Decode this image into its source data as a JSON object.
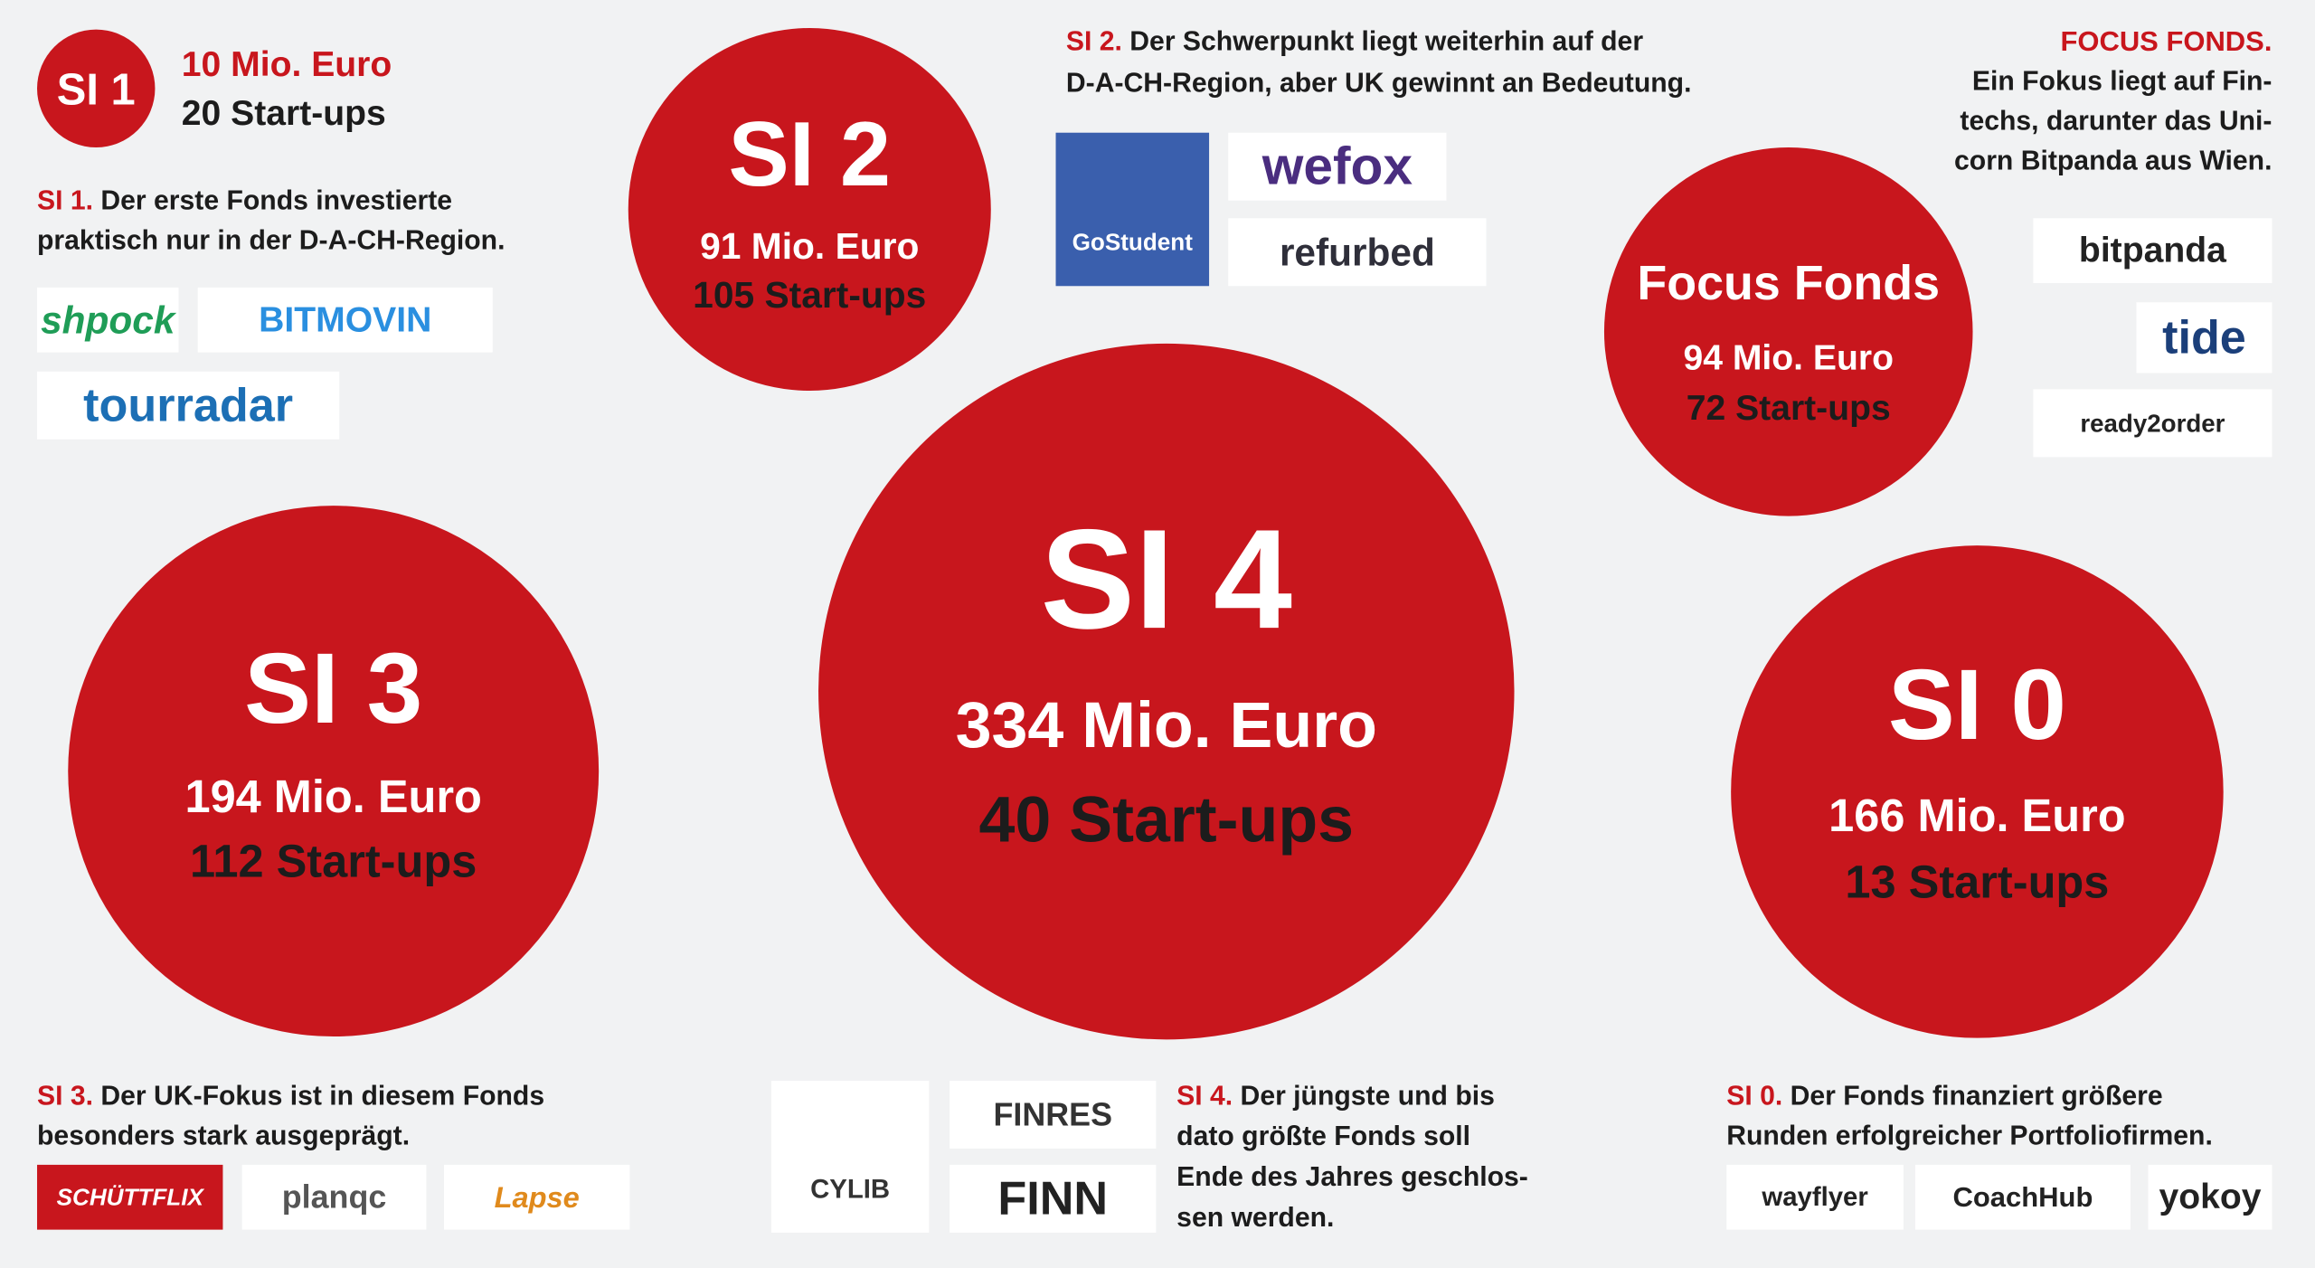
{
  "funds": [
    {
      "badge": "SI 1",
      "amount": "10 Mio. Euro",
      "startups": "20 Start-ups",
      "lead": "SI 1.",
      "text": [
        "Der erste Fonds investierte",
        "praktisch nur in der D-A-CH-Region."
      ],
      "logos": [
        "shpock",
        "BITMOVIN",
        "tourradar"
      ]
    },
    {
      "badge": "SI 2",
      "amount": "91 Mio. Euro",
      "startups": "105 Start-ups",
      "lead": "SI 2.",
      "text": [
        "Der Schwerpunkt liegt weiterhin auf der",
        "D-A-CH-Region, aber UK gewinnt an Bedeutung."
      ],
      "logos": [
        "GoStudent",
        "wefox",
        "refurbed"
      ]
    },
    {
      "badge": "Focus Fonds",
      "amount": "94 Mio. Euro",
      "startups": "72 Start-ups",
      "lead": "FOCUS FONDS.",
      "text": [
        "Ein Fokus liegt auf Fin-",
        "techs, darunter das Uni-",
        "corn Bitpanda aus Wien."
      ],
      "logos": [
        "bitpanda",
        "tide",
        "ready2order"
      ]
    },
    {
      "badge": "SI 3",
      "amount": "194 Mio. Euro",
      "startups": "112 Start-ups",
      "lead": "SI 3.",
      "text": [
        "Der UK-Fokus ist in diesem Fonds",
        "besonders stark ausgeprägt."
      ],
      "logos": [
        "SCHÜTTFLIX",
        "planqc",
        "Lapse"
      ]
    },
    {
      "badge": "SI 4",
      "amount": "334 Mio. Euro",
      "startups": "40 Start-ups",
      "lead": "SI 4.",
      "text": [
        "Der jüngste und bis",
        "dato größte Fonds soll",
        "Ende des Jahres geschlos-",
        "sen werden."
      ],
      "logos": [
        "CYLIB",
        "FINRES",
        "FINN"
      ]
    },
    {
      "badge": "SI 0",
      "amount": "166 Mio. Euro",
      "startups": "13 Start-ups",
      "lead": "SI 0.",
      "text": [
        "Der Fonds finanziert größere",
        "Runden erfolgreicher Portfoliofirmen."
      ],
      "logos": [
        "wayflyer",
        "CoachHub",
        "yokoy"
      ]
    }
  ]
}
